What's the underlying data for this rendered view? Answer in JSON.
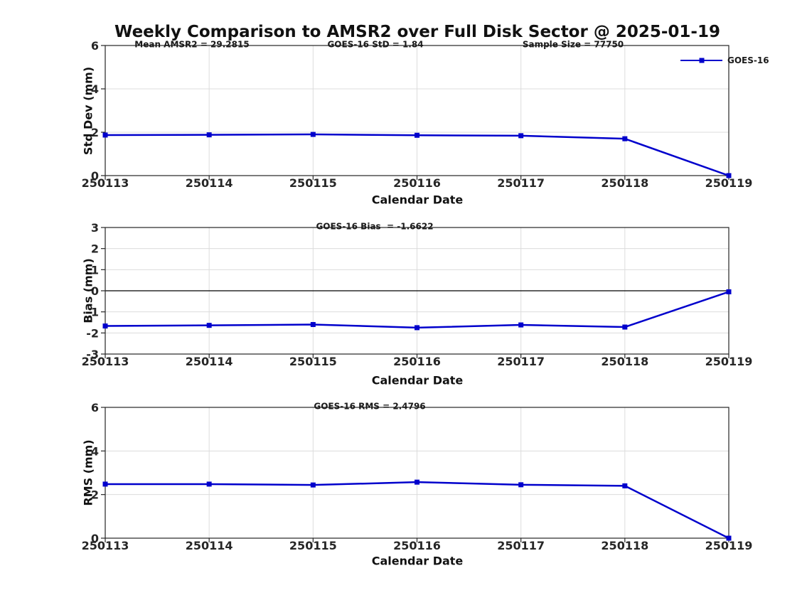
{
  "title": "Weekly Comparison to AMSR2 over Full Disk Sector @ 2025-01-19",
  "legend": {
    "label": "GOES-16"
  },
  "colors": {
    "line": "#0000cc",
    "marker": "#0000cc",
    "grid": "#dcdcdc",
    "axis": "#262626",
    "zero_line": "#000000",
    "text": "#1a1a1a"
  },
  "chart_data": [
    {
      "type": "line",
      "name": "std-dev-vs-date",
      "categories": [
        "250113",
        "250114",
        "250115",
        "250116",
        "250117",
        "250118",
        "250119"
      ],
      "series": [
        {
          "name": "GOES-16",
          "values": [
            1.87,
            1.88,
            1.9,
            1.86,
            1.84,
            1.7,
            0.0
          ]
        }
      ],
      "annotations": [
        "Mean AMSR2 = 29.2815",
        "GOES-16 StD = 1.84",
        "Sample Size = 77750"
      ],
      "xlabel": "Calendar Date",
      "ylabel": "Std Dev (mm)",
      "ylim": [
        0,
        6
      ],
      "yticks": [
        0,
        2,
        4,
        6
      ],
      "grid": true,
      "zero_line": false,
      "legend_position": "outside-top-right",
      "marker": "square"
    },
    {
      "type": "line",
      "name": "bias-vs-date",
      "categories": [
        "250113",
        "250114",
        "250115",
        "250116",
        "250117",
        "250118",
        "250119"
      ],
      "series": [
        {
          "name": "GOES-16",
          "values": [
            -1.67,
            -1.64,
            -1.6,
            -1.75,
            -1.62,
            -1.72,
            -0.05
          ]
        }
      ],
      "annotations": [
        "GOES-16 Bias  = -1.6622"
      ],
      "xlabel": "Calendar Date",
      "ylabel": "Bias (mm)",
      "ylim": [
        -3,
        3
      ],
      "yticks": [
        -3,
        -2,
        -1,
        0,
        1,
        2,
        3
      ],
      "grid": true,
      "zero_line": true,
      "marker": "square"
    },
    {
      "type": "line",
      "name": "rms-vs-date",
      "categories": [
        "250113",
        "250114",
        "250115",
        "250116",
        "250117",
        "250118",
        "250119"
      ],
      "series": [
        {
          "name": "GOES-16",
          "values": [
            2.48,
            2.48,
            2.44,
            2.57,
            2.45,
            2.4,
            0.0
          ]
        }
      ],
      "annotations": [
        "GOES-16 RMS = 2.4796"
      ],
      "xlabel": "Calendar Date",
      "ylabel": "RMS (mm)",
      "ylim": [
        0,
        6
      ],
      "yticks": [
        0,
        2,
        4,
        6
      ],
      "grid": true,
      "zero_line": false,
      "marker": "square"
    }
  ]
}
